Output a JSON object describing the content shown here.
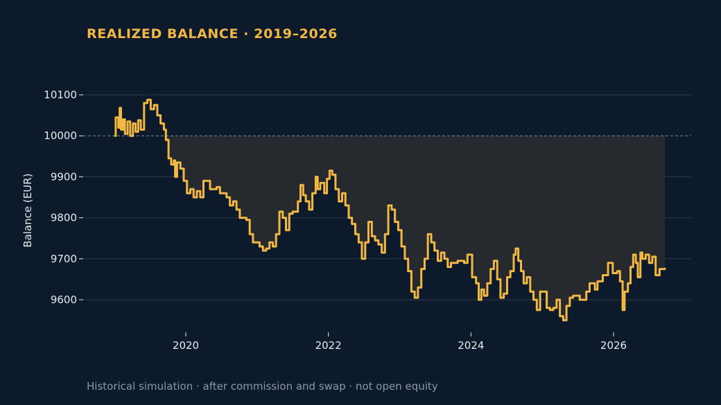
{
  "title": "REALIZED BALANCE · 2019–2026",
  "footnote": "Historical simulation · after commission and swap · not open equity",
  "colors": {
    "background": "#0c1a2b",
    "line": "#f2b843",
    "grid": "#2b3a4b",
    "baseline": "#6e8296",
    "shade": "#262a2f"
  },
  "chart_data": {
    "type": "line",
    "title": "REALIZED BALANCE · 2019–2026",
    "xlabel": "",
    "ylabel": "Balance (EUR)",
    "xlim": [
      2018.8,
      2027.1
    ],
    "ylim": [
      9520,
      10130
    ],
    "x_ticks": [
      2020,
      2022,
      2024,
      2026
    ],
    "y_ticks": [
      9600,
      9700,
      9800,
      9900,
      10000,
      10100
    ],
    "reference_line": 10000,
    "shaded_below_reference": true,
    "grid": true,
    "step": true,
    "series": [
      {
        "values": [
          [
            2019.0,
            10000
          ],
          [
            2019.02,
            10045
          ],
          [
            2019.06,
            10020
          ],
          [
            2019.08,
            10068
          ],
          [
            2019.1,
            10015
          ],
          [
            2019.13,
            10040
          ],
          [
            2019.16,
            10005
          ],
          [
            2019.2,
            10035
          ],
          [
            2019.24,
            10000
          ],
          [
            2019.28,
            10030
          ],
          [
            2019.32,
            10010
          ],
          [
            2019.36,
            10038
          ],
          [
            2019.4,
            10015
          ],
          [
            2019.45,
            10080
          ],
          [
            2019.5,
            10088
          ],
          [
            2019.55,
            10065
          ],
          [
            2019.6,
            10075
          ],
          [
            2019.65,
            10050
          ],
          [
            2019.7,
            10030
          ],
          [
            2019.75,
            10015
          ],
          [
            2019.78,
            9990
          ],
          [
            2019.82,
            9945
          ],
          [
            2019.86,
            9930
          ],
          [
            2019.9,
            9940
          ],
          [
            2019.92,
            9900
          ],
          [
            2019.95,
            9935
          ],
          [
            2020.0,
            9920
          ],
          [
            2020.05,
            9890
          ],
          [
            2020.1,
            9860
          ],
          [
            2020.15,
            9870
          ],
          [
            2020.2,
            9850
          ],
          [
            2020.25,
            9865
          ],
          [
            2020.3,
            9850
          ],
          [
            2020.35,
            9890
          ],
          [
            2020.45,
            9870
          ],
          [
            2020.55,
            9875
          ],
          [
            2020.6,
            9860
          ],
          [
            2020.7,
            9850
          ],
          [
            2020.75,
            9830
          ],
          [
            2020.8,
            9840
          ],
          [
            2020.85,
            9820
          ],
          [
            2020.9,
            9800
          ],
          [
            2021.0,
            9795
          ],
          [
            2021.05,
            9760
          ],
          [
            2021.1,
            9740
          ],
          [
            2021.2,
            9730
          ],
          [
            2021.25,
            9720
          ],
          [
            2021.3,
            9725
          ],
          [
            2021.35,
            9740
          ],
          [
            2021.4,
            9730
          ],
          [
            2021.45,
            9760
          ],
          [
            2021.5,
            9815
          ],
          [
            2021.55,
            9800
          ],
          [
            2021.6,
            9770
          ],
          [
            2021.65,
            9810
          ],
          [
            2021.7,
            9815
          ],
          [
            2021.78,
            9840
          ],
          [
            2021.82,
            9880
          ],
          [
            2021.86,
            9855
          ],
          [
            2021.9,
            9840
          ],
          [
            2021.95,
            9820
          ],
          [
            2022.0,
            9860
          ],
          [
            2022.05,
            9900
          ],
          [
            2022.08,
            9870
          ],
          [
            2022.12,
            9885
          ],
          [
            2022.18,
            9860
          ],
          [
            2022.22,
            9895
          ],
          [
            2022.26,
            9915
          ],
          [
            2022.3,
            9905
          ],
          [
            2022.35,
            9870
          ],
          [
            2022.4,
            9840
          ],
          [
            2022.45,
            9860
          ],
          [
            2022.5,
            9830
          ],
          [
            2022.55,
            9800
          ],
          [
            2022.6,
            9785
          ],
          [
            2022.65,
            9760
          ],
          [
            2022.7,
            9740
          ],
          [
            2022.75,
            9700
          ],
          [
            2022.8,
            9740
          ],
          [
            2022.85,
            9790
          ],
          [
            2022.9,
            9755
          ],
          [
            2022.95,
            9745
          ],
          [
            2023.0,
            9735
          ],
          [
            2023.05,
            9715
          ],
          [
            2023.1,
            9760
          ],
          [
            2023.15,
            9830
          ],
          [
            2023.2,
            9820
          ],
          [
            2023.25,
            9790
          ],
          [
            2023.3,
            9770
          ],
          [
            2023.35,
            9730
          ],
          [
            2023.4,
            9700
          ],
          [
            2023.45,
            9670
          ],
          [
            2023.5,
            9620
          ],
          [
            2023.55,
            9605
          ],
          [
            2023.6,
            9630
          ],
          [
            2023.65,
            9675
          ],
          [
            2023.7,
            9700
          ],
          [
            2023.75,
            9760
          ],
          [
            2023.8,
            9740
          ],
          [
            2023.85,
            9720
          ],
          [
            2023.9,
            9695
          ],
          [
            2023.95,
            9715
          ],
          [
            2024.0,
            9700
          ],
          [
            2024.05,
            9680
          ],
          [
            2024.1,
            9690
          ],
          [
            2024.2,
            9695
          ],
          [
            2024.3,
            9690
          ],
          [
            2024.35,
            9710
          ],
          [
            2024.42,
            9655
          ],
          [
            2024.48,
            9640
          ],
          [
            2024.52,
            9600
          ],
          [
            2024.56,
            9625
          ],
          [
            2024.6,
            9610
          ],
          [
            2024.65,
            9640
          ],
          [
            2024.7,
            9675
          ],
          [
            2024.75,
            9695
          ],
          [
            2024.8,
            9650
          ],
          [
            2024.85,
            9605
          ],
          [
            2024.9,
            9615
          ],
          [
            2024.95,
            9655
          ],
          [
            2025.0,
            9670
          ],
          [
            2025.05,
            9710
          ],
          [
            2025.08,
            9725
          ],
          [
            2025.12,
            9695
          ],
          [
            2025.16,
            9670
          ],
          [
            2025.2,
            9640
          ],
          [
            2025.25,
            9655
          ],
          [
            2025.3,
            9620
          ],
          [
            2025.35,
            9600
          ],
          [
            2025.4,
            9575
          ],
          [
            2025.45,
            9620
          ],
          [
            2025.55,
            9580
          ],
          [
            2025.6,
            9575
          ],
          [
            2025.65,
            9580
          ],
          [
            2025.7,
            9600
          ],
          [
            2025.75,
            9560
          ],
          [
            2025.8,
            9550
          ],
          [
            2025.85,
            9585
          ],
          [
            2025.9,
            9605
          ],
          [
            2025.95,
            9610
          ],
          [
            2026.05,
            9600
          ],
          [
            2026.15,
            9620
          ],
          [
            2026.2,
            9640
          ],
          [
            2026.28,
            9625
          ],
          [
            2026.32,
            9645
          ],
          [
            2026.4,
            9660
          ],
          [
            2026.48,
            9690
          ],
          [
            2026.55,
            9665
          ],
          [
            2026.62,
            9670
          ],
          [
            2026.66,
            9645
          ],
          [
            2026.7,
            9575
          ],
          [
            2026.73,
            9620
          ],
          [
            2026.78,
            9640
          ],
          [
            2026.82,
            9680
          ],
          [
            2026.86,
            9710
          ],
          [
            2026.9,
            9690
          ],
          [
            2026.93,
            9655
          ],
          [
            2026.97,
            9715
          ],
          [
            2027.0,
            9700
          ],
          [
            2027.05,
            9710
          ],
          [
            2027.1,
            9690
          ],
          [
            2027.15,
            9705
          ],
          [
            2027.2,
            9660
          ],
          [
            2027.26,
            9675
          ],
          [
            2027.34,
            9678
          ]
        ]
      }
    ]
  }
}
